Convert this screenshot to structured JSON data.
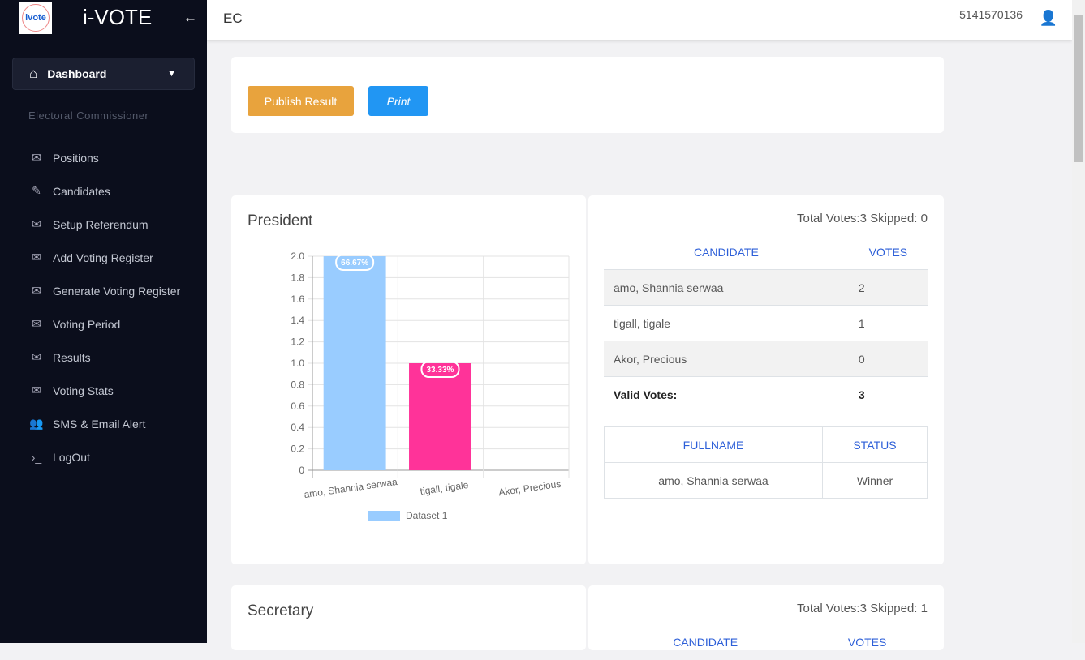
{
  "sidebar": {
    "brand": "i-VOTE",
    "logo_text": "ivote",
    "dashboard": "Dashboard",
    "section": "Electoral Commissioner",
    "items": [
      {
        "label": "Positions",
        "icon": "mail-icon"
      },
      {
        "label": "Candidates",
        "icon": "edit-icon"
      },
      {
        "label": "Setup Referendum",
        "icon": "mail-icon"
      },
      {
        "label": "Add Voting Register",
        "icon": "mail-icon"
      },
      {
        "label": "Generate Voting Register",
        "icon": "mail-icon"
      },
      {
        "label": "Voting Period",
        "icon": "mail-icon"
      },
      {
        "label": "Results",
        "icon": "mail-icon"
      },
      {
        "label": "Voting Stats",
        "icon": "mail-icon"
      },
      {
        "label": "SMS & Email Alert",
        "icon": "users-icon"
      },
      {
        "label": "LogOut",
        "icon": "terminal-icon"
      }
    ]
  },
  "header": {
    "title": "EC",
    "phone": "5141570136"
  },
  "actions": {
    "publish": "Publish Result",
    "print": "Print"
  },
  "president": {
    "title": "President",
    "totals": "Total Votes:3 Skipped: 0",
    "col_candidate": "CANDIDATE",
    "col_votes": "VOTES",
    "rows": [
      {
        "name": "amo, Shannia serwaa",
        "votes": "2"
      },
      {
        "name": "tigall, tigale",
        "votes": "1"
      },
      {
        "name": "Akor, Precious",
        "votes": "0"
      }
    ],
    "valid_label": "Valid Votes:",
    "valid": "3",
    "col_fullname": "FULLNAME",
    "col_status": "STATUS",
    "winner_name": "amo, Shannia serwaa",
    "winner_status": "Winner"
  },
  "secretary": {
    "title": "Secretary",
    "totals": "Total Votes:3 Skipped: 1",
    "col_candidate": "CANDIDATE",
    "col_votes": "VOTES"
  },
  "chart_data": {
    "type": "bar",
    "categories": [
      "amo, Shannia serwaa",
      "tigall, tigale",
      "Akor, Precious"
    ],
    "series": [
      {
        "name": "Dataset 1",
        "values": [
          2,
          1,
          0
        ],
        "colors": [
          "#99ccff",
          "#ff3399",
          "#cccccc"
        ]
      }
    ],
    "data_labels": [
      "66.67%",
      "33.33%",
      ""
    ],
    "ylim": [
      0,
      2
    ],
    "yticks": [
      "0",
      "0.2",
      "0.4",
      "0.6",
      "0.8",
      "1.0",
      "1.2",
      "1.4",
      "1.6",
      "1.8",
      "2.0"
    ],
    "grid": true,
    "legend": "bottom"
  },
  "colors": {
    "sidebar": "#0b0e1c",
    "publish": "#e8a33d",
    "print": "#2196f3"
  }
}
